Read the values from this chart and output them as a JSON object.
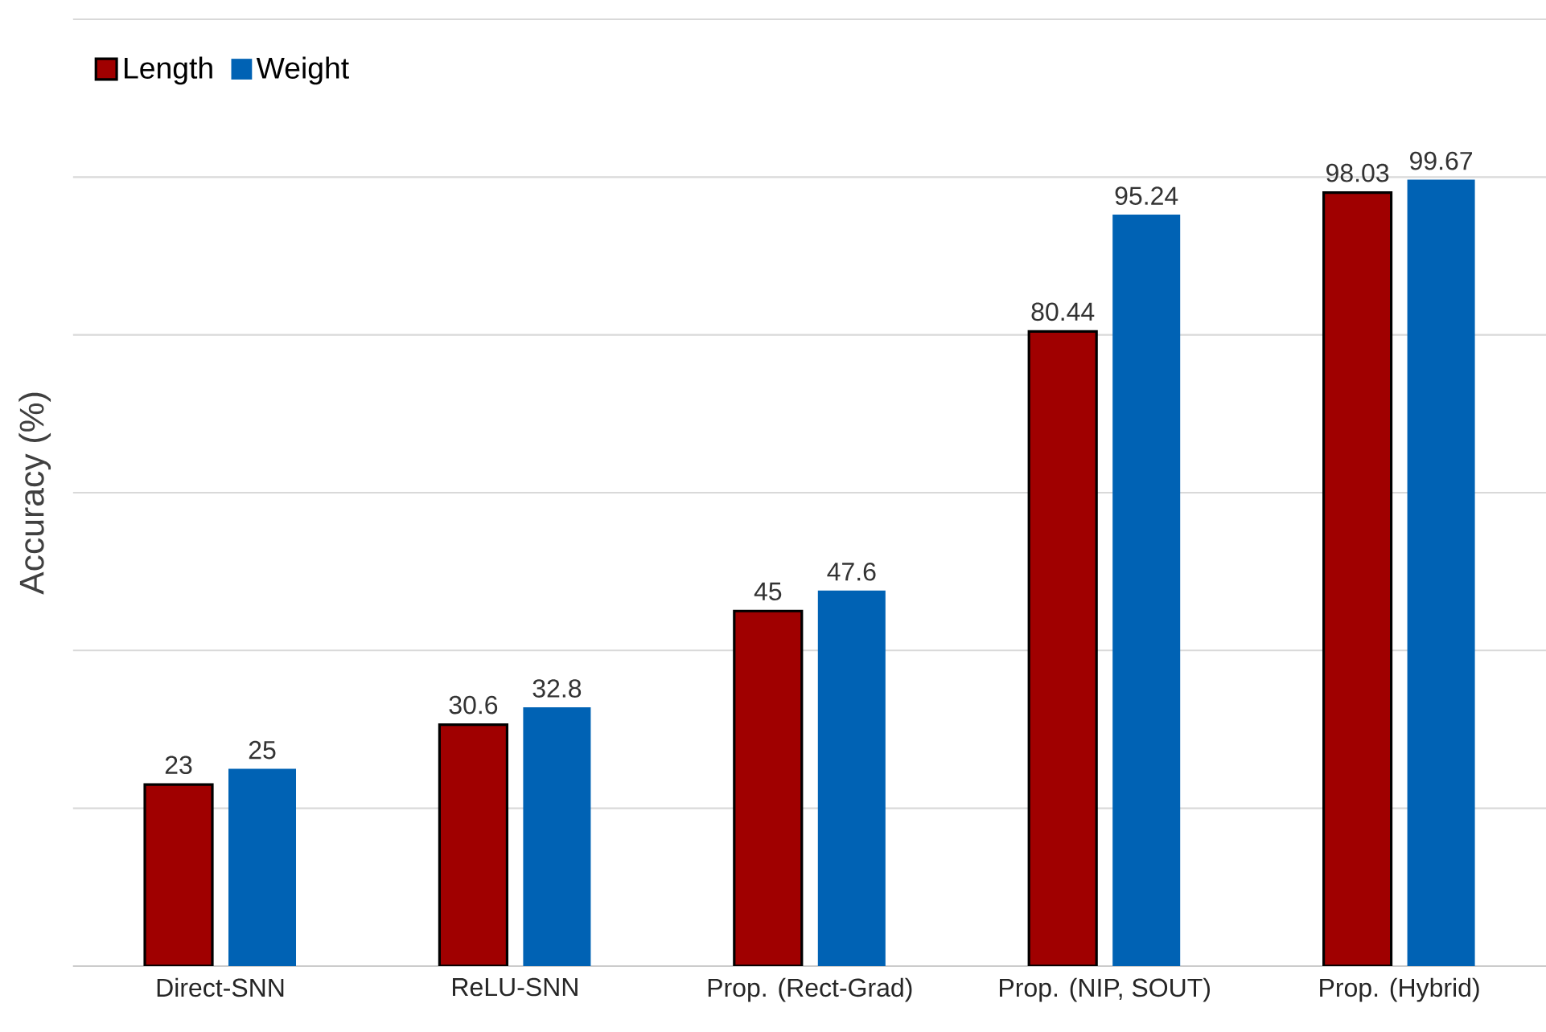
{
  "chart_data": {
    "type": "bar",
    "ylabel": "Accuracy (%)",
    "categories": [
      "Direct-SNN",
      "ReLU-SNN",
      "Prop. (Rect-Grad)",
      "Prop. (NIP, SOUT)",
      "Prop. (Hybrid)"
    ],
    "series": [
      {
        "name": "Length",
        "color": "#a00000",
        "values": [
          23,
          30.6,
          45,
          80.44,
          98.03
        ]
      },
      {
        "name": "Weight",
        "color": "#0062b4",
        "values": [
          25,
          32.8,
          47.6,
          95.24,
          99.67
        ]
      }
    ],
    "ylim": [
      0,
      120
    ],
    "yticks": [
      {
        "value": 0,
        "label": null
      },
      {
        "value": 20,
        "label": null
      },
      {
        "value": 40,
        "label": null
      },
      {
        "value": 60,
        "label": null
      },
      {
        "value": 80,
        "label": null
      },
      {
        "value": 100,
        "label": null
      },
      {
        "value": 120,
        "label": null
      }
    ],
    "grid": "y",
    "legend": "top left",
    "tick_labels": "x",
    "data_labels": true
  }
}
